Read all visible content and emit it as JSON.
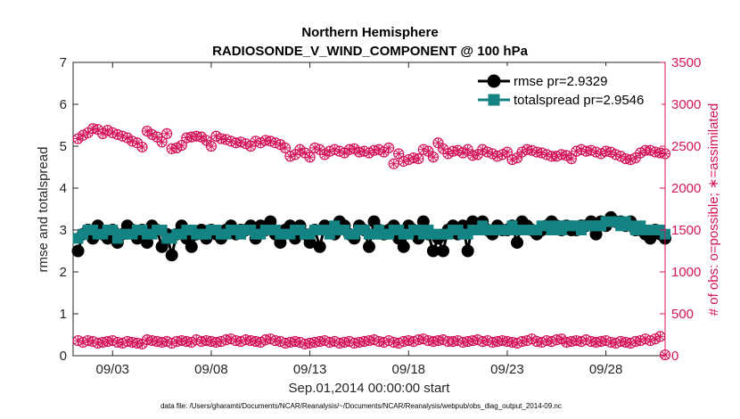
{
  "colors": {
    "rmse": "#000000",
    "spread": "#138383",
    "obs": "#d4145a",
    "axis": "#262626"
  },
  "chart_data": {
    "type": "line",
    "title": "Northern Hemisphere",
    "subtitle": "RADIOSONDE_V_WIND_COMPONENT @ 100 hPa",
    "xlabel": "Sep.01,2014 00:00:00 start",
    "ylabel": "rmse and totalspread",
    "y2label": "# of obs: o=possible; ∗=assimilated",
    "footnote": "data file: /Users/gharamti/Documents/NCAR/Reanalysis/~/Documents/NCAR/Reanalysis/webpub/obs_diag_output_2014-09.nc",
    "xlim": [
      1.0,
      31.0
    ],
    "ylim": [
      0,
      7
    ],
    "y2lim": [
      0,
      3500
    ],
    "xticks": [
      3,
      8,
      13,
      18,
      23,
      28
    ],
    "xtick_labels": [
      "09/03",
      "09/08",
      "09/13",
      "09/18",
      "09/23",
      "09/28"
    ],
    "yticks": [
      0,
      1,
      2,
      3,
      4,
      5,
      6,
      7
    ],
    "y2ticks": [
      0,
      500,
      1000,
      1500,
      2000,
      2500,
      3000,
      3500
    ],
    "legend": {
      "location": "top-right",
      "entries": [
        "rmse pr=2.9329",
        "totalspread pr=2.9546"
      ]
    },
    "x": [
      1.25,
      1.5,
      1.75,
      2.0,
      2.25,
      2.5,
      2.75,
      3.0,
      3.25,
      3.5,
      3.75,
      4.0,
      4.25,
      4.5,
      4.75,
      5.0,
      5.25,
      5.5,
      5.75,
      6.0,
      6.25,
      6.5,
      6.75,
      7.0,
      7.25,
      7.5,
      7.75,
      8.0,
      8.25,
      8.5,
      8.75,
      9.0,
      9.25,
      9.5,
      9.75,
      10.0,
      10.25,
      10.5,
      10.75,
      11.0,
      11.25,
      11.5,
      11.75,
      12.0,
      12.25,
      12.5,
      12.75,
      13.0,
      13.25,
      13.5,
      13.75,
      14.0,
      14.25,
      14.5,
      14.75,
      15.0,
      15.25,
      15.5,
      15.75,
      16.0,
      16.25,
      16.5,
      16.75,
      17.0,
      17.25,
      17.5,
      17.75,
      18.0,
      18.25,
      18.5,
      18.75,
      19.0,
      19.25,
      19.5,
      19.75,
      20.0,
      20.25,
      20.5,
      20.75,
      21.0,
      21.25,
      21.5,
      21.75,
      22.0,
      22.25,
      22.5,
      22.75,
      23.0,
      23.25,
      23.5,
      23.75,
      24.0,
      24.25,
      24.5,
      24.75,
      25.0,
      25.25,
      25.5,
      25.75,
      26.0,
      26.25,
      26.5,
      26.75,
      27.0,
      27.25,
      27.5,
      27.75,
      28.0,
      28.25,
      28.5,
      28.75,
      29.0,
      29.25,
      29.5,
      29.75,
      30.0,
      30.25,
      30.5,
      30.75,
      31.0
    ],
    "series": [
      {
        "name": "rmse",
        "marker": "circle",
        "values": [
          2.5,
          2.9,
          3.0,
          2.8,
          3.1,
          2.9,
          2.8,
          3.0,
          2.7,
          2.9,
          3.1,
          3.0,
          2.8,
          3.0,
          2.7,
          3.1,
          3.0,
          2.6,
          2.9,
          2.4,
          2.9,
          3.1,
          2.8,
          2.6,
          2.9,
          3.0,
          2.8,
          3.0,
          2.9,
          2.8,
          3.0,
          3.1,
          2.9,
          3.0,
          3.0,
          3.1,
          2.8,
          3.1,
          3.0,
          3.2,
          2.9,
          2.7,
          3.0,
          3.1,
          2.8,
          3.1,
          2.9,
          2.7,
          3.0,
          2.6,
          3.1,
          3.0,
          2.9,
          3.2,
          3.1,
          2.9,
          2.8,
          3.1,
          3.0,
          2.6,
          3.2,
          3.0,
          2.9,
          3.0,
          3.1,
          2.8,
          2.6,
          3.1,
          3.0,
          2.8,
          3.2,
          2.9,
          2.5,
          2.8,
          2.5,
          3.0,
          3.1,
          2.9,
          3.1,
          2.5,
          3.2,
          3.1,
          3.2,
          3.0,
          2.9,
          3.1,
          3.0,
          3.0,
          3.1,
          2.7,
          3.2,
          3.1,
          3.0,
          2.9,
          3.0,
          3.1,
          3.2,
          3.1,
          3.0,
          3.1,
          3.0,
          3.0,
          3.1,
          3.1,
          3.2,
          2.9,
          3.2,
          3.1,
          3.3,
          3.2,
          3.2,
          3.1,
          3.2,
          3.0,
          3.0,
          2.9,
          2.8,
          3.0,
          2.9,
          2.8
        ]
      },
      {
        "name": "totalspread",
        "marker": "square",
        "values": [
          2.8,
          2.9,
          3.0,
          3.0,
          2.9,
          2.9,
          3.0,
          3.0,
          2.8,
          2.9,
          2.9,
          2.9,
          3.0,
          3.0,
          2.9,
          2.9,
          3.0,
          3.0,
          2.8,
          2.8,
          2.9,
          2.9,
          3.0,
          3.0,
          2.9,
          2.9,
          2.9,
          3.0,
          3.0,
          2.9,
          2.9,
          3.0,
          3.0,
          2.9,
          3.0,
          3.0,
          2.9,
          2.9,
          3.0,
          3.0,
          3.0,
          2.9,
          2.9,
          2.9,
          3.0,
          3.0,
          2.9,
          2.9,
          3.0,
          3.0,
          3.0,
          2.9,
          3.1,
          3.0,
          3.0,
          2.9,
          2.9,
          3.0,
          3.0,
          2.9,
          2.9,
          3.0,
          2.9,
          2.9,
          3.0,
          3.0,
          2.9,
          2.9,
          3.0,
          3.0,
          2.9,
          3.0,
          2.9,
          2.9,
          2.9,
          2.9,
          3.0,
          3.0,
          2.9,
          2.9,
          3.0,
          3.0,
          3.1,
          3.0,
          3.0,
          3.0,
          3.0,
          3.0,
          3.1,
          3.0,
          3.0,
          3.0,
          3.0,
          3.0,
          3.1,
          3.1,
          3.0,
          3.1,
          3.0,
          3.1,
          3.1,
          3.1,
          3.0,
          3.1,
          3.1,
          3.1,
          3.1,
          3.2,
          3.2,
          3.2,
          3.1,
          3.2,
          3.1,
          3.0,
          3.1,
          3.0,
          3.0,
          3.0,
          3.0,
          2.9
        ]
      },
      {
        "name": "# of obs possible",
        "marker": "circle-open",
        "axis": "right",
        "values": [
          2590,
          2630,
          2660,
          2710,
          2700,
          2650,
          2690,
          2660,
          2640,
          2620,
          2600,
          2560,
          2540,
          2490,
          2680,
          2640,
          2610,
          2550,
          2650,
          2470,
          2480,
          2510,
          2600,
          2610,
          2620,
          2610,
          2570,
          2500,
          2620,
          2590,
          2580,
          2560,
          2540,
          2550,
          2530,
          2500,
          2560,
          2540,
          2570,
          2560,
          2540,
          2520,
          2480,
          2380,
          2400,
          2460,
          2420,
          2370,
          2480,
          2460,
          2400,
          2440,
          2460,
          2440,
          2420,
          2460,
          2470,
          2430,
          2440,
          2420,
          2450,
          2460,
          2430,
          2480,
          2290,
          2410,
          2320,
          2340,
          2360,
          2350,
          2460,
          2440,
          2370,
          2540,
          2470,
          2410,
          2440,
          2450,
          2420,
          2460,
          2390,
          2400,
          2460,
          2430,
          2410,
          2380,
          2400,
          2430,
          2340,
          2360,
          2430,
          2460,
          2450,
          2430,
          2420,
          2400,
          2380,
          2380,
          2400,
          2390,
          2350,
          2440,
          2460,
          2440,
          2450,
          2430,
          2410,
          2440,
          2430,
          2400,
          2380,
          2350,
          2340,
          2360,
          2420,
          2450,
          2450,
          2430,
          2420,
          2410
        ]
      },
      {
        "name": "# of obs assimilated",
        "marker": "star",
        "axis": "right",
        "values": [
          180,
          160,
          180,
          170,
          150,
          160,
          170,
          180,
          160,
          150,
          170,
          160,
          150,
          140,
          190,
          180,
          170,
          160,
          170,
          150,
          170,
          180,
          170,
          160,
          190,
          170,
          180,
          170,
          160,
          170,
          190,
          200,
          180,
          170,
          190,
          180,
          170,
          160,
          190,
          200,
          180,
          170,
          150,
          160,
          170,
          160,
          140,
          150,
          160,
          170,
          180,
          160,
          170,
          150,
          160,
          170,
          150,
          160,
          170,
          180,
          190,
          170,
          160,
          180,
          160,
          150,
          170,
          180,
          170,
          190,
          200,
          180,
          170,
          180,
          190,
          170,
          170,
          180,
          160,
          170,
          180,
          190,
          170,
          180,
          160,
          170,
          180,
          170,
          160,
          150,
          170,
          180,
          200,
          170,
          160,
          180,
          170,
          190,
          200,
          160,
          170,
          180,
          170,
          190,
          170,
          160,
          170,
          180,
          160,
          150,
          170,
          160,
          150,
          170,
          180,
          200,
          180,
          200,
          230,
          10
        ]
      }
    ]
  }
}
